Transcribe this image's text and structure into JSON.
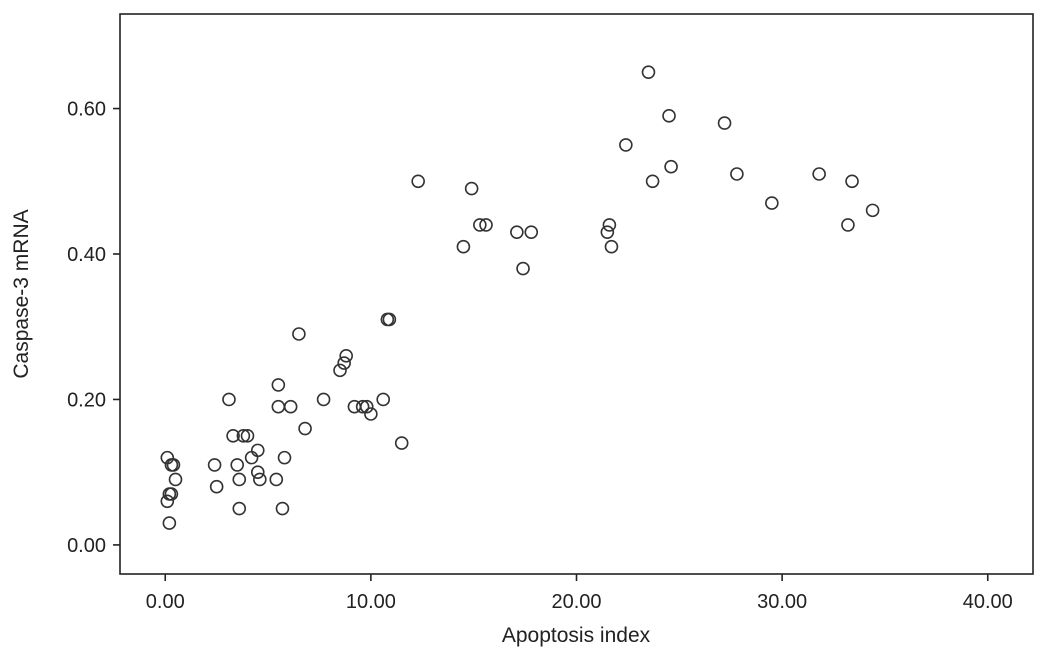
{
  "chart_data": {
    "type": "scatter",
    "title": "",
    "xlabel": "Apoptosis index",
    "ylabel": "Caspase-3 mRNA",
    "xlim": [
      -2.2,
      42.2
    ],
    "ylim": [
      -0.04,
      0.73
    ],
    "x_ticks": [
      0,
      10,
      20,
      30,
      40
    ],
    "x_tick_labels": [
      "0.00",
      "10.00",
      "20.00",
      "30.00",
      "40.00"
    ],
    "y_ticks": [
      0,
      0.2,
      0.4,
      0.6
    ],
    "y_tick_labels": [
      "0.00",
      "0.20",
      "0.40",
      "0.60"
    ],
    "grid": false,
    "legend": "none",
    "marker": "open-circle",
    "marker_color": "#333333",
    "points": [
      {
        "x": 0.1,
        "y": 0.12
      },
      {
        "x": 0.3,
        "y": 0.11
      },
      {
        "x": 0.4,
        "y": 0.11
      },
      {
        "x": 0.5,
        "y": 0.09
      },
      {
        "x": 0.2,
        "y": 0.07
      },
      {
        "x": 0.3,
        "y": 0.07
      },
      {
        "x": 0.1,
        "y": 0.06
      },
      {
        "x": 0.2,
        "y": 0.03
      },
      {
        "x": 2.4,
        "y": 0.11
      },
      {
        "x": 2.5,
        "y": 0.08
      },
      {
        "x": 3.1,
        "y": 0.2
      },
      {
        "x": 3.3,
        "y": 0.15
      },
      {
        "x": 3.5,
        "y": 0.11
      },
      {
        "x": 3.6,
        "y": 0.09
      },
      {
        "x": 3.6,
        "y": 0.05
      },
      {
        "x": 3.8,
        "y": 0.15
      },
      {
        "x": 4.0,
        "y": 0.15
      },
      {
        "x": 4.2,
        "y": 0.12
      },
      {
        "x": 4.5,
        "y": 0.13
      },
      {
        "x": 4.5,
        "y": 0.1
      },
      {
        "x": 4.6,
        "y": 0.09
      },
      {
        "x": 5.4,
        "y": 0.09
      },
      {
        "x": 5.5,
        "y": 0.22
      },
      {
        "x": 5.5,
        "y": 0.19
      },
      {
        "x": 5.8,
        "y": 0.12
      },
      {
        "x": 5.7,
        "y": 0.05
      },
      {
        "x": 6.1,
        "y": 0.19
      },
      {
        "x": 6.5,
        "y": 0.29
      },
      {
        "x": 6.8,
        "y": 0.16
      },
      {
        "x": 7.7,
        "y": 0.2
      },
      {
        "x": 8.5,
        "y": 0.24
      },
      {
        "x": 8.7,
        "y": 0.25
      },
      {
        "x": 8.8,
        "y": 0.26
      },
      {
        "x": 9.2,
        "y": 0.19
      },
      {
        "x": 9.6,
        "y": 0.19
      },
      {
        "x": 9.8,
        "y": 0.19
      },
      {
        "x": 10.0,
        "y": 0.18
      },
      {
        "x": 10.6,
        "y": 0.2
      },
      {
        "x": 10.8,
        "y": 0.31
      },
      {
        "x": 10.9,
        "y": 0.31
      },
      {
        "x": 11.5,
        "y": 0.14
      },
      {
        "x": 12.3,
        "y": 0.5
      },
      {
        "x": 14.5,
        "y": 0.41
      },
      {
        "x": 14.9,
        "y": 0.49
      },
      {
        "x": 15.3,
        "y": 0.44
      },
      {
        "x": 15.6,
        "y": 0.44
      },
      {
        "x": 17.1,
        "y": 0.43
      },
      {
        "x": 17.4,
        "y": 0.38
      },
      {
        "x": 17.8,
        "y": 0.43
      },
      {
        "x": 21.5,
        "y": 0.43
      },
      {
        "x": 21.6,
        "y": 0.44
      },
      {
        "x": 21.7,
        "y": 0.41
      },
      {
        "x": 22.4,
        "y": 0.55
      },
      {
        "x": 23.5,
        "y": 0.65
      },
      {
        "x": 23.7,
        "y": 0.5
      },
      {
        "x": 24.5,
        "y": 0.59
      },
      {
        "x": 24.6,
        "y": 0.52
      },
      {
        "x": 27.2,
        "y": 0.58
      },
      {
        "x": 27.8,
        "y": 0.51
      },
      {
        "x": 29.5,
        "y": 0.47
      },
      {
        "x": 31.8,
        "y": 0.51
      },
      {
        "x": 33.2,
        "y": 0.44
      },
      {
        "x": 33.4,
        "y": 0.5
      },
      {
        "x": 34.4,
        "y": 0.46
      }
    ]
  }
}
